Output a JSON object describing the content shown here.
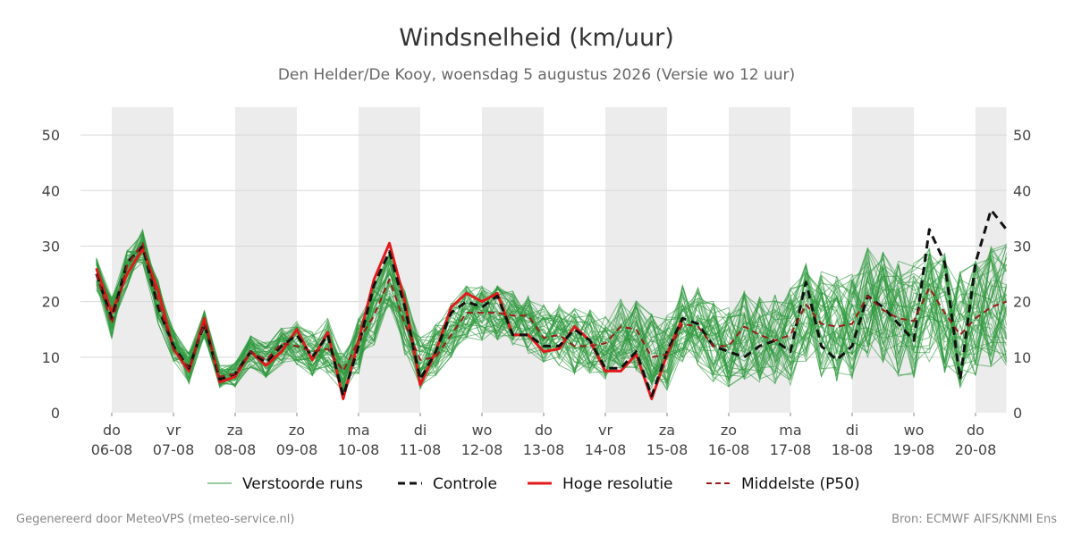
{
  "chart_data": {
    "type": "line",
    "title": "Windsnelheid (km/uur)",
    "subtitle": "Den Helder/De Kooy, woensdag  5 augustus 2026 (Versie wo 12 uur)",
    "ylim": [
      0,
      55
    ],
    "yticks": [
      0,
      10,
      20,
      30,
      40,
      50
    ],
    "xlim_days": [
      -0.25,
      14.5
    ],
    "x_ticks": [
      {
        "day": "do",
        "date": "06-08"
      },
      {
        "day": "vr",
        "date": "07-08"
      },
      {
        "day": "za",
        "date": "08-08"
      },
      {
        "day": "zo",
        "date": "09-08"
      },
      {
        "day": "ma",
        "date": "10-08"
      },
      {
        "day": "di",
        "date": "11-08"
      },
      {
        "day": "wo",
        "date": "12-08"
      },
      {
        "day": "do",
        "date": "13-08"
      },
      {
        "day": "vr",
        "date": "14-08"
      },
      {
        "day": "za",
        "date": "15-08"
      },
      {
        "day": "zo",
        "date": "16-08"
      },
      {
        "day": "ma",
        "date": "17-08"
      },
      {
        "day": "di",
        "date": "18-08"
      },
      {
        "day": "wo",
        "date": "19-08"
      },
      {
        "day": "do",
        "date": "20-08"
      }
    ],
    "shaded_days": [
      [
        0,
        1
      ],
      [
        2,
        3
      ],
      [
        4,
        5
      ],
      [
        6,
        7
      ],
      [
        8,
        9
      ],
      [
        10,
        11
      ],
      [
        12,
        13
      ],
      [
        14,
        14.5
      ]
    ],
    "grid": true,
    "legend_position": "bottom",
    "series": [
      {
        "name": "Hoge resolutie",
        "color": "#e31a1c",
        "x": [
          -0.25,
          0,
          0.25,
          0.5,
          0.75,
          1,
          1.25,
          1.5,
          1.75,
          2,
          2.25,
          2.5,
          2.75,
          3,
          3.25,
          3.5,
          3.75,
          4,
          4.25,
          4.5,
          4.75,
          5,
          5.25,
          5.5,
          5.75,
          6,
          6.25,
          6.5,
          6.75,
          7,
          7.25,
          7.5,
          7.75,
          8,
          8.25,
          8.5,
          8.75,
          9,
          9.25
        ],
        "y": [
          26,
          18,
          25,
          29.5,
          22,
          11.5,
          7.5,
          17,
          5.5,
          6.5,
          11,
          8.5,
          11,
          15,
          9.5,
          14.5,
          2.5,
          13,
          24,
          30.5,
          20,
          5,
          11,
          19,
          21.5,
          20,
          21.5,
          14,
          14,
          11,
          11.5,
          15.5,
          13,
          7.5,
          7.5,
          10.5,
          2.5,
          10.5,
          17
        ]
      },
      {
        "name": "Controle",
        "color": "#111111",
        "x": [
          -0.25,
          0,
          0.25,
          0.5,
          0.75,
          1,
          1.25,
          1.5,
          1.75,
          2,
          2.25,
          2.5,
          2.75,
          3,
          3.25,
          3.5,
          3.75,
          4,
          4.25,
          4.5,
          4.75,
          5,
          5.25,
          5.5,
          5.75,
          6,
          6.25,
          6.5,
          6.75,
          7,
          7.25,
          7.5,
          7.75,
          8,
          8.25,
          8.5,
          8.75,
          9,
          9.25,
          9.5,
          9.75,
          10,
          10.25,
          10.5,
          10.75,
          11,
          11.25,
          11.5,
          11.75,
          12,
          12.25,
          12.5,
          12.75,
          13,
          13.25,
          13.5,
          13.75,
          14,
          14.25,
          14.5
        ],
        "y": [
          25,
          17,
          27,
          30,
          19,
          12,
          8,
          16,
          6,
          7,
          11,
          9,
          12,
          14,
          10,
          14,
          3,
          12,
          23,
          29,
          19,
          6,
          11,
          18,
          20,
          19,
          21,
          14,
          14,
          12,
          12,
          15,
          13,
          8,
          8,
          11,
          3,
          11,
          17,
          16,
          12,
          11,
          10,
          12,
          13,
          11,
          23.5,
          12,
          9.5,
          12,
          21,
          19,
          16,
          13,
          33,
          27,
          6,
          27,
          36.5,
          33
        ]
      },
      {
        "name": "Middelste (P50)",
        "color": "#9b1c1c",
        "x": [
          -0.25,
          0,
          0.25,
          0.5,
          0.75,
          1,
          1.25,
          1.5,
          1.75,
          2,
          2.25,
          2.5,
          2.75,
          3,
          3.25,
          3.5,
          3.75,
          4,
          4.25,
          4.5,
          4.75,
          5,
          5.25,
          5.5,
          5.75,
          6,
          6.25,
          6.5,
          6.75,
          7,
          7.25,
          7.5,
          7.75,
          8,
          8.25,
          8.5,
          8.75,
          9,
          9.25,
          9.5,
          9.75,
          10,
          10.25,
          10.5,
          10.75,
          11,
          11.25,
          11.5,
          11.75,
          12,
          12.25,
          12.5,
          12.75,
          13,
          13.25,
          13.5,
          13.75,
          14,
          14.25,
          14.5
        ],
        "y": [
          25,
          16,
          26.5,
          30.5,
          20,
          11.5,
          8,
          16,
          6.5,
          7,
          11,
          9.5,
          12.5,
          12,
          11,
          11.5,
          7.5,
          13,
          17.5,
          24,
          16,
          9.5,
          10,
          14,
          18,
          18,
          18,
          17.5,
          17.5,
          13.5,
          14,
          12,
          12,
          12.5,
          15.5,
          15,
          10,
          10.5,
          16,
          15.5,
          12,
          12,
          15.5,
          14,
          13,
          14,
          19.5,
          16,
          15.5,
          16,
          21,
          18.5,
          17,
          16.5,
          22.5,
          18,
          14,
          17,
          19,
          20
        ]
      }
    ],
    "ensemble": {
      "name": "Verstoorde runs",
      "color": "#2e9a3e",
      "members": 50,
      "x_step": 0.25,
      "center": [
        25,
        17,
        26,
        30,
        20,
        12,
        8,
        16,
        6.5,
        7,
        11,
        9.5,
        12,
        12.5,
        10.5,
        12,
        7,
        12,
        18,
        24,
        16,
        9,
        11,
        15,
        18,
        18,
        18,
        17,
        16,
        14,
        14,
        13,
        13,
        12,
        14,
        14,
        11,
        11,
        16,
        15.5,
        13,
        12,
        14,
        13.5,
        13,
        13.5,
        18,
        16,
        15,
        16,
        20,
        19,
        17,
        16.5,
        20,
        18,
        15,
        17,
        19,
        19.5
      ],
      "spread": [
        3,
        4,
        3.5,
        3,
        4,
        3,
        3,
        2.5,
        2,
        2.5,
        3,
        3.5,
        3.5,
        4,
        4,
        5,
        4,
        5,
        6,
        5,
        6,
        5,
        5,
        5,
        5,
        5,
        5,
        5,
        5.5,
        5.5,
        5.5,
        6,
        6,
        6,
        6.5,
        6.5,
        7,
        7,
        7,
        7,
        7.5,
        7.5,
        8,
        8,
        8.5,
        9,
        9,
        9.5,
        10,
        10,
        10,
        10,
        10.5,
        10.5,
        11,
        11,
        11,
        11,
        11,
        11
      ]
    }
  },
  "legend": [
    {
      "label": "Verstoorde runs",
      "style": "thin",
      "color": "#2e9a3e"
    },
    {
      "label": "Controle",
      "style": "dashed",
      "color": "#111111"
    },
    {
      "label": "Hoge resolutie",
      "style": "solid",
      "color": "#e31a1c"
    },
    {
      "label": "Middelste (P50)",
      "style": "dashed-thin",
      "color": "#9b1c1c"
    }
  ],
  "footer": {
    "left": "Gegenereerd door MeteoVPS (meteo-service.nl)",
    "right": "Bron: ECMWF AIFS/KNMI Ens"
  }
}
